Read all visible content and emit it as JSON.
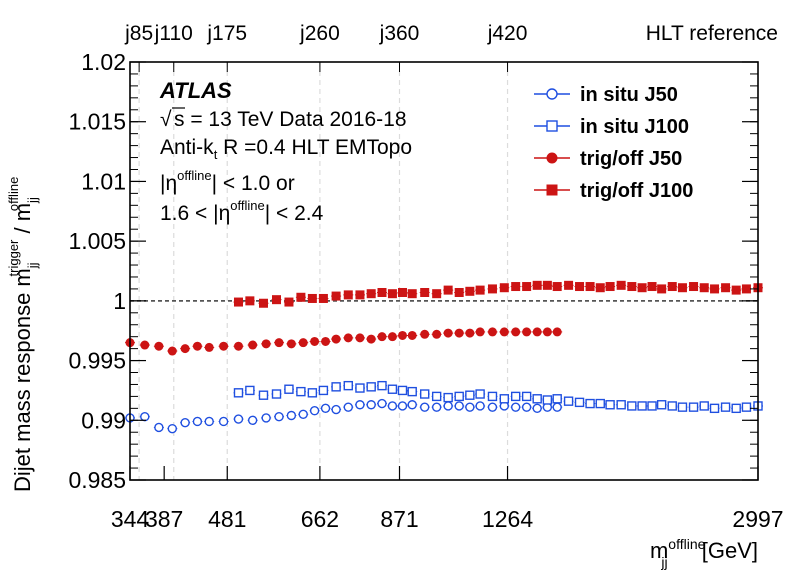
{
  "chart_data": {
    "type": "scatter",
    "title": "",
    "xlabel": "m_jj^offline [GeV]",
    "xlabel_parts": {
      "m": "m",
      "sub": "jj",
      "sup": "offline",
      "unit": " [GeV]"
    },
    "ylabel": "Dijet mass response m_jj^trigger / m_jj^offline",
    "ylabel_parts": {
      "main": "Dijet mass response m",
      "sub1": "jj",
      "sup1": "trigger",
      "slash": " / m",
      "sub2": "jj",
      "sup2": "offline"
    },
    "x_scale": "log",
    "xlim": [
      344,
      2997
    ],
    "ylim": [
      0.985,
      1.02
    ],
    "x_ticks": [
      344,
      387,
      481,
      662,
      871,
      1264,
      2997
    ],
    "x_tick_labels": [
      "344",
      "387",
      "481",
      "662",
      "871",
      "1264",
      "2997"
    ],
    "y_ticks": [
      0.985,
      0.99,
      0.995,
      1.0,
      1.005,
      1.01,
      1.015,
      1.02
    ],
    "y_tick_labels": [
      "0.985",
      "0.99",
      "0.995",
      "1",
      "1.005",
      "1.01",
      "1.015",
      "1.02"
    ],
    "reference_line": 1.0,
    "top_axis": {
      "title": "HLT reference",
      "triggers": [
        {
          "label": "j85",
          "x": 355
        },
        {
          "label": "j110",
          "x": 400
        },
        {
          "label": "j175",
          "x": 481
        },
        {
          "label": "j260",
          "x": 662
        },
        {
          "label": "j360",
          "x": 871
        },
        {
          "label": "j420",
          "x": 1264
        }
      ]
    },
    "annotation": {
      "logo": "ATLAS",
      "sqrt": "√",
      "line1": "s = 13 TeV Data 2016-18",
      "line2_pre": "Anti-k",
      "line2_sub": "t",
      "line2_post": " R =0.4 HLT EMTopo",
      "line3_pre": "|η",
      "line3_sup": "offline",
      "line3_post": "| < 1.0 or",
      "line4_pre": "1.6 < |η",
      "line4_sup": "offline",
      "line4_post": "| < 2.4"
    },
    "legend_position": "top-right",
    "series": [
      {
        "name": "in situ J50",
        "marker": "open-circle",
        "color": "#1f4fe0",
        "x": [
          344,
          362,
          380,
          398,
          416,
          434,
          452,
          475,
          500,
          525,
          550,
          575,
          600,
          625,
          650,
          675,
          700,
          730,
          760,
          790,
          820,
          850,
          880,
          910,
          950,
          990,
          1030,
          1070,
          1110,
          1150,
          1200,
          1250,
          1300,
          1350,
          1400,
          1450,
          1500
        ],
        "values": [
          0.9902,
          0.9903,
          0.9894,
          0.9893,
          0.9898,
          0.9899,
          0.9899,
          0.9899,
          0.9901,
          0.99,
          0.9902,
          0.9903,
          0.9904,
          0.9905,
          0.9908,
          0.991,
          0.9909,
          0.9911,
          0.9913,
          0.9913,
          0.9914,
          0.9912,
          0.9912,
          0.9913,
          0.9911,
          0.9911,
          0.9912,
          0.9912,
          0.9911,
          0.9912,
          0.9911,
          0.9912,
          0.9911,
          0.9911,
          0.991,
          0.9911,
          0.9911
        ]
      },
      {
        "name": "in situ J100",
        "marker": "open-square",
        "color": "#1f4fe0",
        "x": [
          500,
          520,
          545,
          570,
          595,
          620,
          645,
          670,
          700,
          730,
          760,
          790,
          820,
          850,
          880,
          910,
          950,
          990,
          1030,
          1070,
          1110,
          1150,
          1200,
          1250,
          1300,
          1350,
          1400,
          1450,
          1500,
          1560,
          1620,
          1680,
          1740,
          1800,
          1870,
          1940,
          2010,
          2080,
          2150,
          2230,
          2310,
          2400,
          2490,
          2580,
          2680,
          2780,
          2880,
          2997
        ],
        "values": [
          0.9923,
          0.9925,
          0.9921,
          0.9922,
          0.9926,
          0.9924,
          0.9923,
          0.9925,
          0.9928,
          0.9929,
          0.9927,
          0.9928,
          0.9929,
          0.9926,
          0.9925,
          0.9924,
          0.9922,
          0.992,
          0.9919,
          0.992,
          0.9921,
          0.9922,
          0.992,
          0.9918,
          0.992,
          0.992,
          0.9918,
          0.9917,
          0.9918,
          0.9916,
          0.9915,
          0.9914,
          0.9914,
          0.9913,
          0.9913,
          0.9912,
          0.9912,
          0.9912,
          0.9913,
          0.9912,
          0.9911,
          0.9911,
          0.9912,
          0.991,
          0.9911,
          0.991,
          0.9911,
          0.9912
        ]
      },
      {
        "name": "trig/off J50",
        "marker": "filled-circle",
        "color": "#cc1414",
        "x": [
          344,
          362,
          380,
          398,
          416,
          434,
          452,
          475,
          500,
          525,
          550,
          575,
          600,
          625,
          650,
          675,
          700,
          730,
          760,
          790,
          820,
          850,
          880,
          910,
          950,
          990,
          1030,
          1070,
          1110,
          1150,
          1200,
          1250,
          1300,
          1350,
          1400,
          1450,
          1500
        ],
        "values": [
          0.9965,
          0.9963,
          0.9962,
          0.9958,
          0.996,
          0.9962,
          0.9961,
          0.9962,
          0.9962,
          0.9963,
          0.9964,
          0.9965,
          0.9964,
          0.9965,
          0.9966,
          0.9966,
          0.9968,
          0.9969,
          0.9969,
          0.9968,
          0.997,
          0.997,
          0.9971,
          0.9971,
          0.9972,
          0.9972,
          0.9973,
          0.9973,
          0.9973,
          0.9974,
          0.9974,
          0.9974,
          0.9974,
          0.9974,
          0.9974,
          0.9974,
          0.9974
        ]
      },
      {
        "name": "trig/off J100",
        "marker": "filled-square",
        "color": "#cc1414",
        "x": [
          500,
          520,
          545,
          570,
          595,
          620,
          645,
          670,
          700,
          730,
          760,
          790,
          820,
          850,
          880,
          910,
          950,
          990,
          1030,
          1070,
          1110,
          1150,
          1200,
          1250,
          1300,
          1350,
          1400,
          1450,
          1500,
          1560,
          1620,
          1680,
          1740,
          1800,
          1870,
          1940,
          2010,
          2080,
          2150,
          2230,
          2310,
          2400,
          2490,
          2580,
          2680,
          2780,
          2880,
          2997
        ],
        "values": [
          0.9999,
          1.0,
          0.9998,
          1.0001,
          0.9999,
          1.0003,
          1.0002,
          1.0002,
          1.0004,
          1.0005,
          1.0005,
          1.0006,
          1.0007,
          1.0006,
          1.0007,
          1.0006,
          1.0007,
          1.0006,
          1.0009,
          1.0007,
          1.0008,
          1.0009,
          1.001,
          1.0011,
          1.0012,
          1.0012,
          1.0013,
          1.0013,
          1.0012,
          1.0013,
          1.0012,
          1.0012,
          1.0011,
          1.0012,
          1.0013,
          1.0012,
          1.0011,
          1.0012,
          1.001,
          1.0012,
          1.0011,
          1.0012,
          1.0011,
          1.001,
          1.0011,
          1.0009,
          1.001,
          1.0011
        ]
      }
    ]
  }
}
